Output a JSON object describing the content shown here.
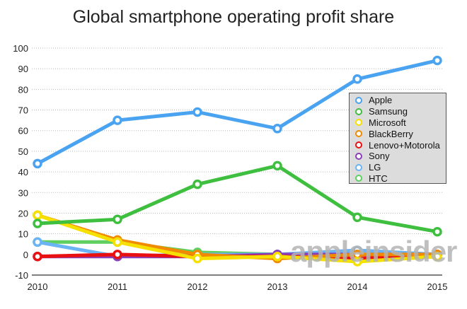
{
  "chart_data": {
    "type": "line",
    "title": "Global smartphone operating profit share",
    "x": [
      "2010",
      "2011",
      "2012",
      "2013",
      "2014",
      "2015"
    ],
    "ylim": [
      -10,
      100
    ],
    "yticks": [
      -10,
      0,
      10,
      20,
      30,
      40,
      50,
      60,
      70,
      80,
      90,
      100
    ],
    "grid": true,
    "legend": "right",
    "series": [
      {
        "name": "Apple",
        "color": "#4aa3f0",
        "values": [
          44,
          65,
          69,
          61,
          85,
          94
        ]
      },
      {
        "name": "Samsung",
        "color": "#3fbf3f",
        "values": [
          15,
          17,
          34,
          43,
          18,
          11
        ]
      },
      {
        "name": "Microsoft",
        "color": "#f5e000",
        "values": [
          19,
          6,
          -2,
          -1,
          -3.5,
          -1
        ]
      },
      {
        "name": "BlackBerry",
        "color": "#f08a00",
        "values": [
          19,
          7,
          0,
          -2,
          0,
          0
        ]
      },
      {
        "name": "Lenovo+Motorola",
        "color": "#e81010",
        "values": [
          -1,
          0,
          -1,
          -1,
          -2,
          0
        ]
      },
      {
        "name": "Sony",
        "color": "#8a3fb8",
        "values": [
          -1,
          -1,
          -1,
          0,
          0,
          0
        ]
      },
      {
        "name": "LG",
        "color": "#6ab4f5",
        "values": [
          6,
          -1,
          0,
          0,
          2,
          0
        ]
      },
      {
        "name": "HTC",
        "color": "#5fd05f",
        "values": [
          6,
          6,
          1,
          0,
          0,
          0
        ]
      }
    ]
  },
  "watermark": "appleinsider"
}
